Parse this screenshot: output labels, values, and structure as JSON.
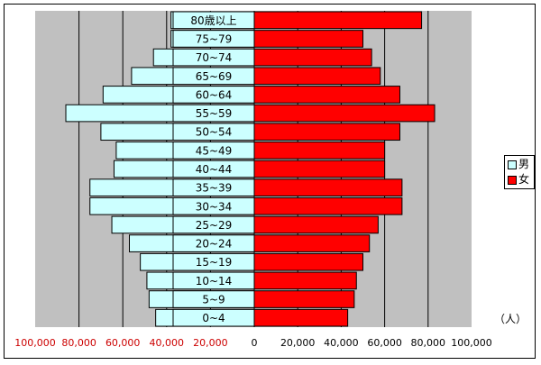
{
  "chart_data": {
    "type": "bar",
    "orientation": "horizontal-pyramid",
    "categories": [
      "0~4",
      "5~9",
      "10~14",
      "15~19",
      "20~24",
      "25~29",
      "30~34",
      "35~39",
      "40~44",
      "45~49",
      "50~54",
      "55~59",
      "60~64",
      "65~69",
      "70~74",
      "75~79",
      "80歳以上"
    ],
    "series": [
      {
        "name": "男",
        "color": "#ccffff",
        "values": [
          45000,
          48000,
          49000,
          52000,
          57000,
          65000,
          75000,
          75000,
          64000,
          63000,
          70000,
          86000,
          69000,
          56000,
          46000,
          38000,
          38000
        ]
      },
      {
        "name": "女",
        "color": "#ff0000",
        "values": [
          43000,
          46000,
          47000,
          50000,
          53000,
          57000,
          68000,
          68000,
          60000,
          60000,
          67000,
          83000,
          67000,
          58000,
          54000,
          50000,
          77000
        ]
      }
    ],
    "x_ticks_left": [
      "100,000",
      "80,000",
      "60,000",
      "40,000",
      "20,000",
      "0"
    ],
    "x_ticks_right": [
      "20,000",
      "40,000",
      "60,000",
      "80,000",
      "100,000"
    ],
    "xlim": [
      0,
      100000
    ],
    "unit": "（人）",
    "grid": true,
    "plot_background": "#c0c0c0",
    "legend_position": "right",
    "left_tick_color": "#cc0000"
  }
}
